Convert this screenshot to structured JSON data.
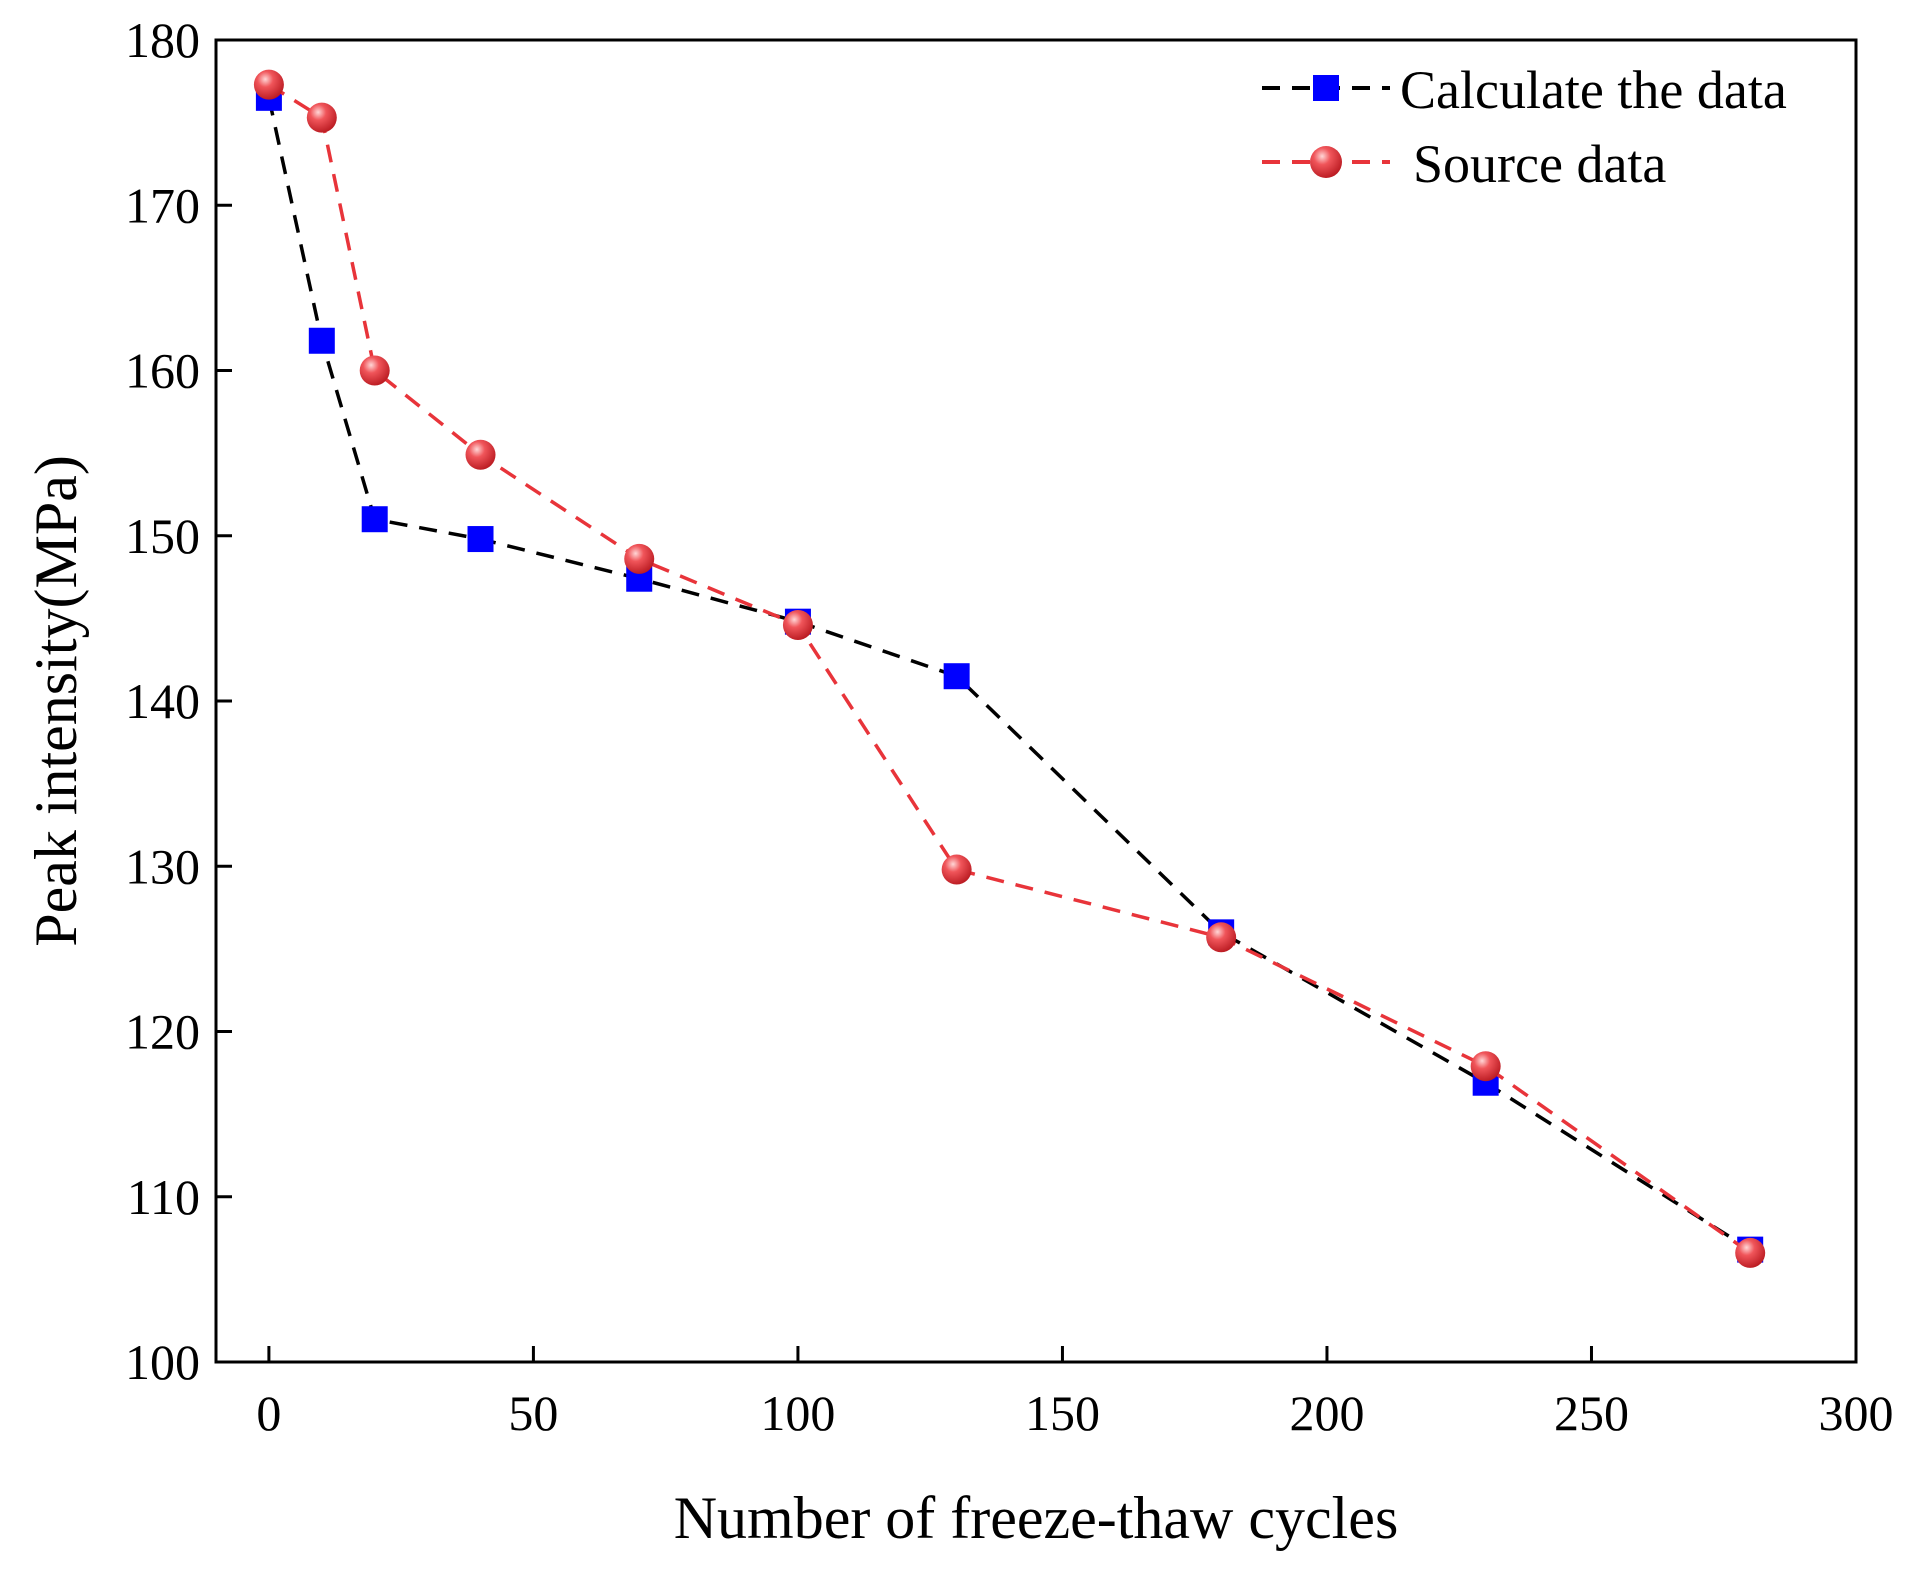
{
  "chart_data": {
    "type": "line",
    "title": "",
    "xlabel": "Number of freeze-thaw cycles",
    "ylabel": "Peak intensity(MPa)",
    "xlim": [
      -10,
      300
    ],
    "ylim": [
      100,
      180
    ],
    "xticks": [
      0,
      50,
      100,
      150,
      200,
      250,
      300
    ],
    "yticks": [
      100,
      110,
      120,
      130,
      140,
      150,
      160,
      170,
      180
    ],
    "grid": false,
    "legend_position": "top-right",
    "series": [
      {
        "name": "Calculate the data",
        "marker": "square",
        "line_style": "dashed",
        "line_color": "#000000",
        "marker_color": "#0000ff",
        "x": [
          0,
          10,
          20,
          40,
          70,
          100,
          130,
          180,
          230,
          280
        ],
        "y": [
          176.5,
          161.8,
          151.0,
          149.8,
          147.4,
          144.8,
          141.5,
          126.0,
          116.9,
          106.8
        ]
      },
      {
        "name": "Source data",
        "marker": "circle",
        "line_style": "dashed",
        "line_color": "#e8343a",
        "marker_color": "#e8343a",
        "x": [
          0,
          10,
          20,
          40,
          70,
          100,
          130,
          180,
          230,
          280
        ],
        "y": [
          177.3,
          175.3,
          160.0,
          154.9,
          148.6,
          144.6,
          129.8,
          125.7,
          117.9,
          106.6
        ]
      }
    ]
  }
}
